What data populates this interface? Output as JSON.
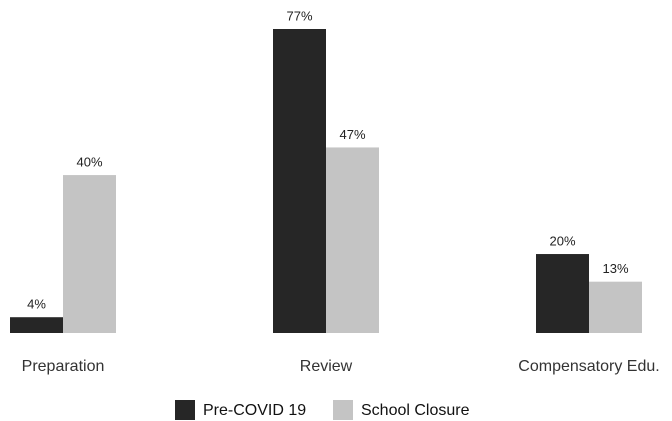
{
  "chart_data": {
    "type": "bar",
    "categories": [
      "Preparation",
      "Review",
      "Compensatory Edu."
    ],
    "series": [
      {
        "name": "Pre-COVID 19",
        "color": "#262626",
        "values": [
          4,
          77,
          20
        ],
        "value_labels": [
          "4%",
          "77%",
          "20%"
        ]
      },
      {
        "name": "School Closure",
        "color": "#c4c4c4",
        "values": [
          40,
          47,
          13
        ],
        "value_labels": [
          "40%",
          "47%",
          "13%"
        ]
      }
    ],
    "legend": "bottom"
  }
}
